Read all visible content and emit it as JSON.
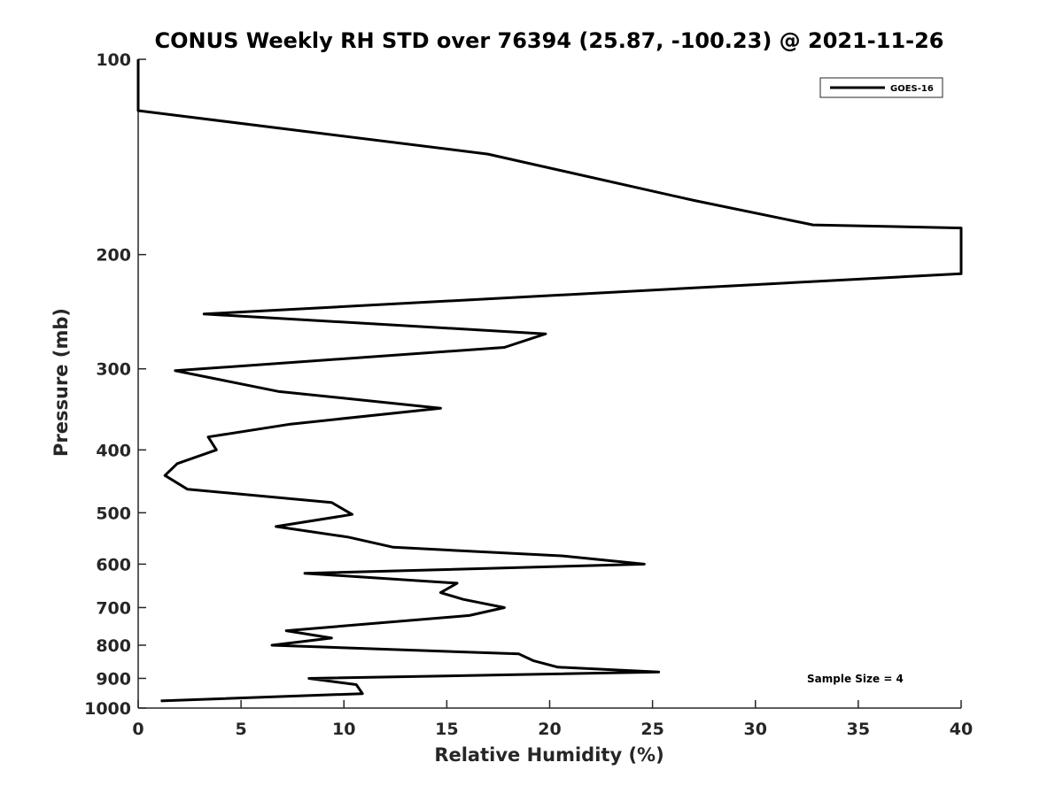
{
  "chart_data": {
    "type": "line",
    "title": "CONUS Weekly RH STD over 76394 (25.87, -100.23) @ 2021-11-26",
    "xlabel": "Relative Humidity (%)",
    "ylabel": "Pressure (mb)",
    "xlim": [
      0,
      40
    ],
    "ylim": [
      100,
      1000
    ],
    "yscale": "log",
    "y_reversed": true,
    "xticks": [
      0,
      5,
      10,
      15,
      20,
      25,
      30,
      35,
      40
    ],
    "yticks": [
      100,
      200,
      300,
      400,
      500,
      600,
      700,
      800,
      900,
      1000
    ],
    "grid": false,
    "legend_position": "top-right",
    "annotation": "Sample Size = 4",
    "colors": {
      "series": "#000000",
      "axis": "#262626"
    },
    "series": [
      {
        "name": "GOES-16",
        "points": [
          [
            0.0,
            100
          ],
          [
            0.0,
            110
          ],
          [
            0.0,
            120
          ],
          [
            17.0,
            140
          ],
          [
            27.0,
            165
          ],
          [
            32.8,
            180
          ],
          [
            40.0,
            182
          ],
          [
            40.0,
            214
          ],
          [
            3.2,
            247
          ],
          [
            19.8,
            265
          ],
          [
            17.8,
            278
          ],
          [
            1.8,
            302
          ],
          [
            6.8,
            325
          ],
          [
            14.7,
            345
          ],
          [
            7.4,
            365
          ],
          [
            3.4,
            382
          ],
          [
            3.8,
            400
          ],
          [
            1.9,
            420
          ],
          [
            1.3,
            438
          ],
          [
            2.4,
            460
          ],
          [
            9.4,
            482
          ],
          [
            10.4,
            503
          ],
          [
            6.7,
            525
          ],
          [
            10.2,
            545
          ],
          [
            12.4,
            565
          ],
          [
            20.7,
            583
          ],
          [
            24.6,
            600
          ],
          [
            8.1,
            620
          ],
          [
            15.5,
            642
          ],
          [
            14.7,
            664
          ],
          [
            15.8,
            680
          ],
          [
            17.8,
            700
          ],
          [
            16.1,
            720
          ],
          [
            7.2,
            760
          ],
          [
            9.4,
            780
          ],
          [
            6.5,
            800
          ],
          [
            18.5,
            825
          ],
          [
            19.2,
            845
          ],
          [
            20.4,
            865
          ],
          [
            25.3,
            880
          ],
          [
            8.3,
            900
          ],
          [
            10.6,
            920
          ],
          [
            10.9,
            950
          ],
          [
            1.1,
            975
          ]
        ]
      }
    ]
  }
}
